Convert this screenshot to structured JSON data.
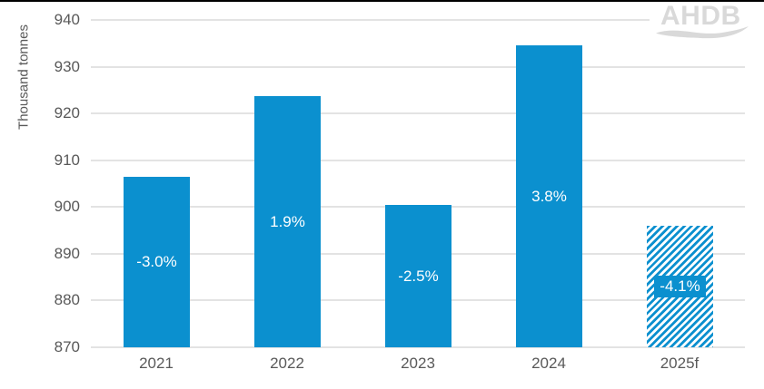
{
  "colors": {
    "bar": "#0b90cf",
    "grid": "#e3e3e3",
    "axis_text": "#595959",
    "bar_label_text": "#ffffff",
    "logo": "#d9d9d9",
    "background": "#ffffff",
    "top_border": "#000000"
  },
  "logo": {
    "text": "AHDB"
  },
  "chart_data": {
    "type": "bar",
    "title": "",
    "xlabel": "",
    "ylabel": "Thousand tonnes",
    "categories": [
      "2021",
      "2022",
      "2023",
      "2024",
      "2025f"
    ],
    "values": [
      906.5,
      923.7,
      900.5,
      934.6,
      896.0
    ],
    "bar_labels": [
      "-3.0%",
      "1.9%",
      "-2.5%",
      "3.8%",
      "-4.1%"
    ],
    "forecast_indices": [
      4
    ],
    "ylim": [
      870,
      940
    ],
    "ytick_step": 10,
    "yticks": [
      "870",
      "880",
      "890",
      "900",
      "910",
      "920",
      "930",
      "940"
    ],
    "grid": true,
    "legend_position": "none"
  }
}
